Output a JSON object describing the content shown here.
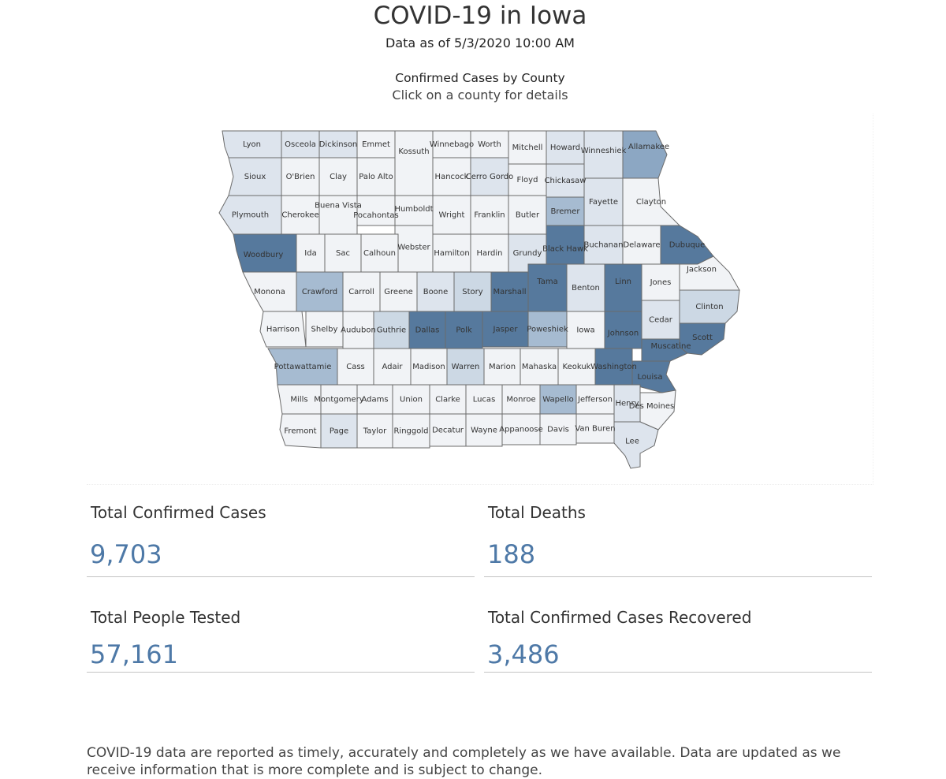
{
  "header": {
    "title": "COVID-19 in Iowa",
    "subtitle": "Data as of 5/3/2020 10:00 AM"
  },
  "map": {
    "title": "Confirmed Cases by County",
    "subtitle": "Click on a county for details",
    "colors": {
      "low": "#f1f3f6",
      "light": "#dde4ed",
      "light_mid": "#ccd8e4",
      "mid": "#a6bbd1",
      "mid_dark": "#8ca7c3",
      "high": "#56799d"
    },
    "counties": [
      {
        "name": "Lyon",
        "level": "light"
      },
      {
        "name": "Osceola",
        "level": "light"
      },
      {
        "name": "Dickinson",
        "level": "light"
      },
      {
        "name": "Emmet",
        "level": "low"
      },
      {
        "name": "Kossuth",
        "level": "low"
      },
      {
        "name": "Winnebago",
        "level": "low"
      },
      {
        "name": "Worth",
        "level": "low"
      },
      {
        "name": "Mitchell",
        "level": "low"
      },
      {
        "name": "Howard",
        "level": "light"
      },
      {
        "name": "Winneshiek",
        "level": "light"
      },
      {
        "name": "Allamakee",
        "level": "mid_dark"
      },
      {
        "name": "Sioux",
        "level": "light"
      },
      {
        "name": "O'Brien",
        "level": "low"
      },
      {
        "name": "Clay",
        "level": "low"
      },
      {
        "name": "Palo Alto",
        "level": "low"
      },
      {
        "name": "Hancock",
        "level": "low"
      },
      {
        "name": "Cerro Gordo",
        "level": "light"
      },
      {
        "name": "Floyd",
        "level": "low"
      },
      {
        "name": "Chickasaw",
        "level": "light"
      },
      {
        "name": "Fayette",
        "level": "light"
      },
      {
        "name": "Clayton",
        "level": "low"
      },
      {
        "name": "Plymouth",
        "level": "light"
      },
      {
        "name": "Cherokee",
        "level": "low"
      },
      {
        "name": "Buena Vista",
        "level": "low"
      },
      {
        "name": "Pocahontas",
        "level": "low"
      },
      {
        "name": "Humboldt",
        "level": "low"
      },
      {
        "name": "Wright",
        "level": "low"
      },
      {
        "name": "Franklin",
        "level": "low"
      },
      {
        "name": "Butler",
        "level": "low"
      },
      {
        "name": "Bremer",
        "level": "mid"
      },
      {
        "name": "Woodbury",
        "level": "high"
      },
      {
        "name": "Ida",
        "level": "low"
      },
      {
        "name": "Sac",
        "level": "low"
      },
      {
        "name": "Calhoun",
        "level": "low"
      },
      {
        "name": "Webster",
        "level": "low"
      },
      {
        "name": "Hamilton",
        "level": "low"
      },
      {
        "name": "Hardin",
        "level": "low"
      },
      {
        "name": "Grundy",
        "level": "light"
      },
      {
        "name": "Black Hawk",
        "level": "high"
      },
      {
        "name": "Buchanan",
        "level": "light"
      },
      {
        "name": "Delaware",
        "level": "low"
      },
      {
        "name": "Dubuque",
        "level": "high"
      },
      {
        "name": "Monona",
        "level": "low"
      },
      {
        "name": "Crawford",
        "level": "mid"
      },
      {
        "name": "Carroll",
        "level": "low"
      },
      {
        "name": "Greene",
        "level": "low"
      },
      {
        "name": "Boone",
        "level": "light"
      },
      {
        "name": "Story",
        "level": "light_mid"
      },
      {
        "name": "Marshall",
        "level": "high"
      },
      {
        "name": "Tama",
        "level": "high"
      },
      {
        "name": "Benton",
        "level": "light"
      },
      {
        "name": "Linn",
        "level": "high"
      },
      {
        "name": "Jones",
        "level": "low"
      },
      {
        "name": "Jackson",
        "level": "low"
      },
      {
        "name": "Harrison",
        "level": "low"
      },
      {
        "name": "Shelby",
        "level": "low"
      },
      {
        "name": "Audubon",
        "level": "low"
      },
      {
        "name": "Guthrie",
        "level": "light_mid"
      },
      {
        "name": "Dallas",
        "level": "high"
      },
      {
        "name": "Polk",
        "level": "high"
      },
      {
        "name": "Jasper",
        "level": "high"
      },
      {
        "name": "Poweshiek",
        "level": "mid"
      },
      {
        "name": "Iowa",
        "level": "low"
      },
      {
        "name": "Johnson",
        "level": "high"
      },
      {
        "name": "Cedar",
        "level": "light"
      },
      {
        "name": "Clinton",
        "level": "light_mid"
      },
      {
        "name": "Scott",
        "level": "high"
      },
      {
        "name": "Pottawattamie",
        "level": "mid"
      },
      {
        "name": "Cass",
        "level": "low"
      },
      {
        "name": "Adair",
        "level": "low"
      },
      {
        "name": "Madison",
        "level": "low"
      },
      {
        "name": "Warren",
        "level": "light_mid"
      },
      {
        "name": "Marion",
        "level": "low"
      },
      {
        "name": "Mahaska",
        "level": "low"
      },
      {
        "name": "Keokuk",
        "level": "low"
      },
      {
        "name": "Washington",
        "level": "high"
      },
      {
        "name": "Muscatine",
        "level": "high"
      },
      {
        "name": "Louisa",
        "level": "high"
      },
      {
        "name": "Mills",
        "level": "low"
      },
      {
        "name": "Montgomery",
        "level": "low"
      },
      {
        "name": "Adams",
        "level": "low"
      },
      {
        "name": "Union",
        "level": "low"
      },
      {
        "name": "Clarke",
        "level": "low"
      },
      {
        "name": "Lucas",
        "level": "low"
      },
      {
        "name": "Monroe",
        "level": "low"
      },
      {
        "name": "Wapello",
        "level": "mid"
      },
      {
        "name": "Jefferson",
        "level": "low"
      },
      {
        "name": "Henry",
        "level": "light"
      },
      {
        "name": "Des Moines",
        "level": "low"
      },
      {
        "name": "Fremont",
        "level": "low"
      },
      {
        "name": "Page",
        "level": "light"
      },
      {
        "name": "Taylor",
        "level": "low"
      },
      {
        "name": "Ringgold",
        "level": "low"
      },
      {
        "name": "Decatur",
        "level": "low"
      },
      {
        "name": "Wayne",
        "level": "low"
      },
      {
        "name": "Appanoose",
        "level": "low"
      },
      {
        "name": "Davis",
        "level": "low"
      },
      {
        "name": "Van Buren",
        "level": "low"
      },
      {
        "name": "Lee",
        "level": "light"
      }
    ]
  },
  "stats": {
    "confirmed_label": "Total Confirmed Cases",
    "confirmed_value": "9,703",
    "deaths_label": "Total Deaths",
    "deaths_value": "188",
    "tested_label": "Total People Tested",
    "tested_value": "57,161",
    "recovered_label": "Total Confirmed Cases Recovered",
    "recovered_value": "3,486"
  },
  "footer": {
    "note": "COVID-19 data are reported as timely, accurately and completely as we have available.  Data are updated as we receive information that is more complete and is subject to change."
  }
}
